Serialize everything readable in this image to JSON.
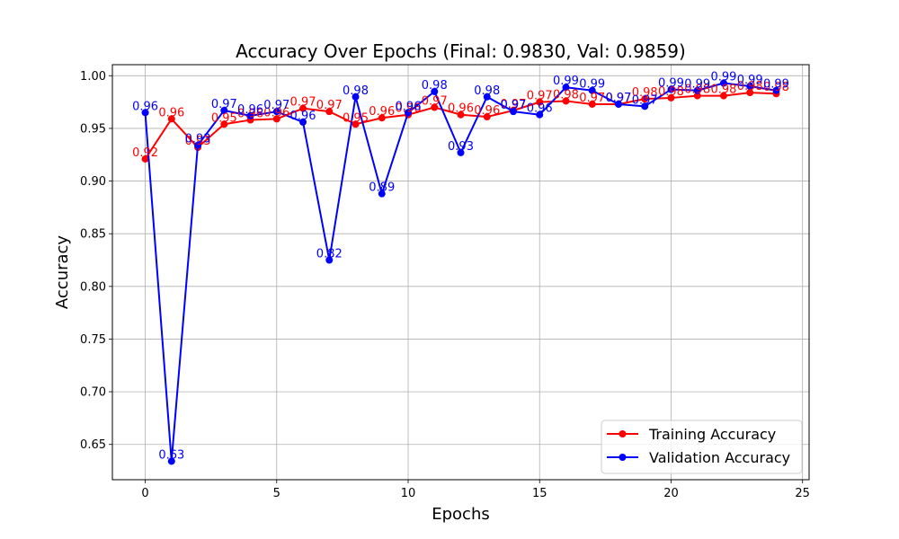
{
  "chart_data": {
    "type": "line",
    "title": "Accuracy Over Epochs (Final: 0.9830, Val: 0.9859)",
    "xlabel": "Epochs",
    "ylabel": "Accuracy",
    "xlim": [
      -1.25,
      25.25
    ],
    "ylim": [
      0.6165,
      1.0105
    ],
    "xticks": [
      0,
      5,
      10,
      15,
      20,
      25
    ],
    "yticks": [
      0.65,
      0.7,
      0.75,
      0.8,
      0.85,
      0.9,
      0.95,
      1.0
    ],
    "grid": true,
    "legend_position": "lower-right",
    "x": [
      0,
      1,
      2,
      3,
      4,
      5,
      6,
      7,
      8,
      9,
      10,
      11,
      12,
      13,
      14,
      15,
      16,
      17,
      18,
      19,
      20,
      21,
      22,
      23,
      24
    ],
    "series": [
      {
        "name": "Training Accuracy",
        "color": "#ff0000",
        "values": [
          0.921,
          0.959,
          0.932,
          0.954,
          0.958,
          0.959,
          0.969,
          0.966,
          0.954,
          0.96,
          0.963,
          0.97,
          0.963,
          0.961,
          0.967,
          0.975,
          0.976,
          0.973,
          0.973,
          0.978,
          0.979,
          0.981,
          0.981,
          0.984,
          0.983
        ]
      },
      {
        "name": "Validation Accuracy",
        "color": "#0000ff",
        "values": [
          0.965,
          0.634,
          0.934,
          0.967,
          0.962,
          0.966,
          0.956,
          0.825,
          0.98,
          0.888,
          0.965,
          0.985,
          0.927,
          0.98,
          0.966,
          0.963,
          0.989,
          0.986,
          0.973,
          0.971,
          0.987,
          0.986,
          0.993,
          0.99,
          0.986
        ]
      }
    ]
  }
}
